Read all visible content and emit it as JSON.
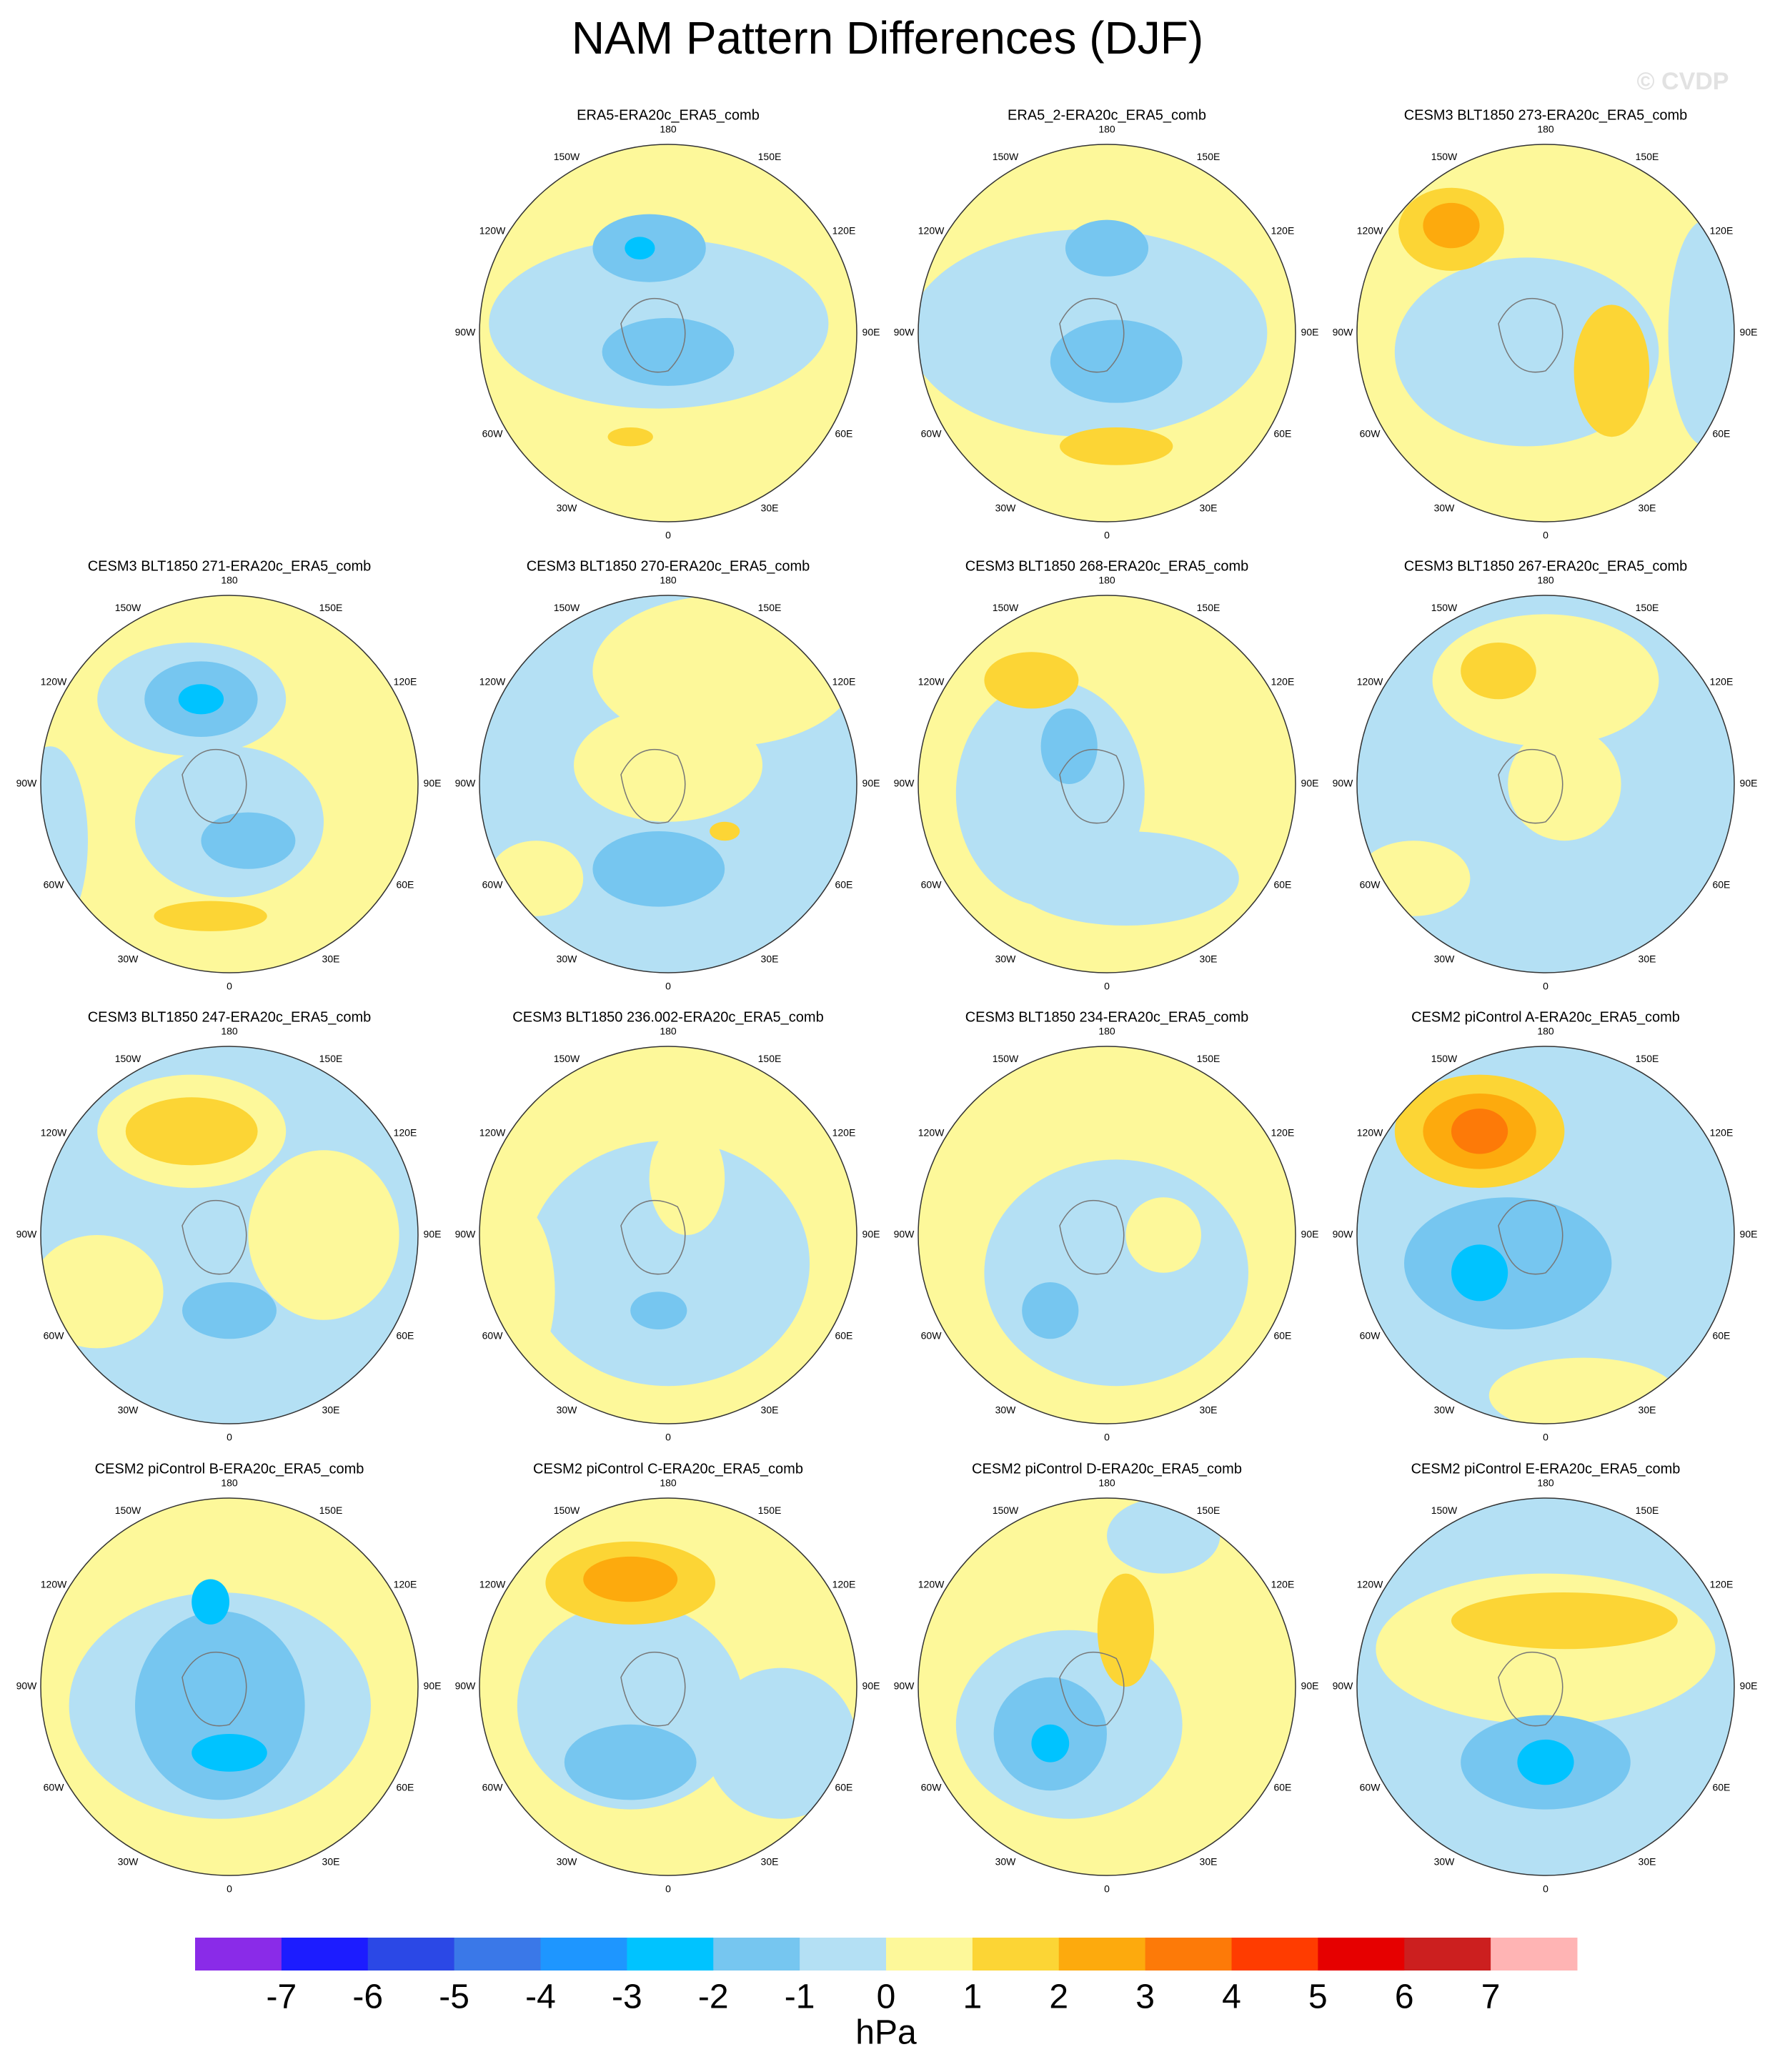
{
  "title": "NAM Pattern Differences (DJF)",
  "watermark": "© CVDP",
  "lon_labels": [
    "0",
    "30E",
    "60E",
    "90E",
    "120E",
    "150E",
    "180",
    "150W",
    "120W",
    "90W",
    "60W",
    "30W"
  ],
  "panels": [
    {
      "title": "ERA5-ERA20c_ERA5_comb"
    },
    {
      "title": "ERA5_2-ERA20c_ERA5_comb"
    },
    {
      "title": "CESM3 BLT1850 273-ERA20c_ERA5_comb"
    },
    {
      "title": "CESM3 BLT1850 271-ERA20c_ERA5_comb"
    },
    {
      "title": "CESM3 BLT1850 270-ERA20c_ERA5_comb"
    },
    {
      "title": "CESM3 BLT1850 268-ERA20c_ERA5_comb"
    },
    {
      "title": "CESM3 BLT1850 267-ERA20c_ERA5_comb"
    },
    {
      "title": "CESM3 BLT1850 247-ERA20c_ERA5_comb"
    },
    {
      "title": "CESM3 BLT1850 236.002-ERA20c_ERA5_comb"
    },
    {
      "title": "CESM3 BLT1850 234-ERA20c_ERA5_comb"
    },
    {
      "title": "CESM2 piControl A-ERA20c_ERA5_comb"
    },
    {
      "title": "CESM2 piControl B-ERA20c_ERA5_comb"
    },
    {
      "title": "CESM2 piControl C-ERA20c_ERA5_comb"
    },
    {
      "title": "CESM2 piControl D-ERA20c_ERA5_comb"
    },
    {
      "title": "CESM2 piControl E-ERA20c_ERA5_comb"
    }
  ],
  "colorbar": {
    "levels": [
      -7,
      -6,
      -5,
      -4,
      -3,
      -2,
      -1,
      0,
      1,
      2,
      3,
      4,
      5,
      6,
      7
    ],
    "colors": [
      "#8a2be8",
      "#1c1cff",
      "#2b48e6",
      "#3a78e8",
      "#1e96ff",
      "#00c3ff",
      "#76c6f0",
      "#b4e0f4",
      "#fdf89a",
      "#fcd535",
      "#fdaa0d",
      "#fd7a08",
      "#ff3c00",
      "#e60000",
      "#cc1f1f",
      "#ffb4b4"
    ],
    "units": "hPa"
  }
}
